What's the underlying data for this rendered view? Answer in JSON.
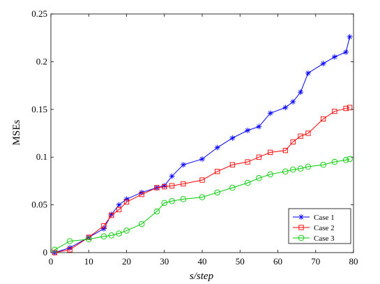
{
  "chart_data": {
    "type": "line",
    "title": "",
    "xlabel": "s/step",
    "ylabel": "MSEs",
    "xlim": [
      0,
      80
    ],
    "ylim": [
      0,
      0.25
    ],
    "xticks": [
      0,
      10,
      20,
      30,
      40,
      50,
      60,
      70,
      80
    ],
    "yticks": [
      0,
      0.05,
      0.1,
      0.15,
      0.2,
      0.25
    ],
    "xtick_labels": [
      "0",
      "10",
      "20",
      "30",
      "40",
      "50",
      "60",
      "70",
      "80"
    ],
    "ytick_labels": [
      "0",
      "0.05",
      "0.1",
      "0.15",
      "0.2",
      "0.25"
    ],
    "grid": false,
    "legend_position": "bottom-right",
    "x": [
      1,
      5,
      10,
      14,
      16,
      18,
      20,
      24,
      28,
      30,
      32,
      35,
      40,
      44,
      48,
      52,
      55,
      58,
      62,
      64,
      66,
      68,
      72,
      75,
      78,
      79
    ],
    "series": [
      {
        "name": "Case 1",
        "color": "#0000ff",
        "marker": "asterisk",
        "values": [
          0,
          0.005,
          0.016,
          0.025,
          0.04,
          0.05,
          0.056,
          0.063,
          0.068,
          0.07,
          0.08,
          0.092,
          0.098,
          0.11,
          0.12,
          0.128,
          0.132,
          0.146,
          0.152,
          0.158,
          0.168,
          0.188,
          0.198,
          0.205,
          0.21,
          0.226
        ]
      },
      {
        "name": "Case 2",
        "color": "#ff0000",
        "marker": "square",
        "values": [
          0,
          0.003,
          0.016,
          0.028,
          0.039,
          0.045,
          0.053,
          0.061,
          0.068,
          0.069,
          0.07,
          0.072,
          0.076,
          0.085,
          0.092,
          0.095,
          0.1,
          0.105,
          0.107,
          0.116,
          0.122,
          0.125,
          0.14,
          0.148,
          0.151,
          0.152
        ]
      },
      {
        "name": "Case 3",
        "color": "#00cc00",
        "marker": "circle",
        "values": [
          0.003,
          0.012,
          0.014,
          0.017,
          0.018,
          0.02,
          0.023,
          0.03,
          0.043,
          0.052,
          0.054,
          0.056,
          0.058,
          0.063,
          0.068,
          0.073,
          0.078,
          0.082,
          0.085,
          0.087,
          0.088,
          0.09,
          0.092,
          0.095,
          0.097,
          0.098
        ]
      }
    ]
  }
}
